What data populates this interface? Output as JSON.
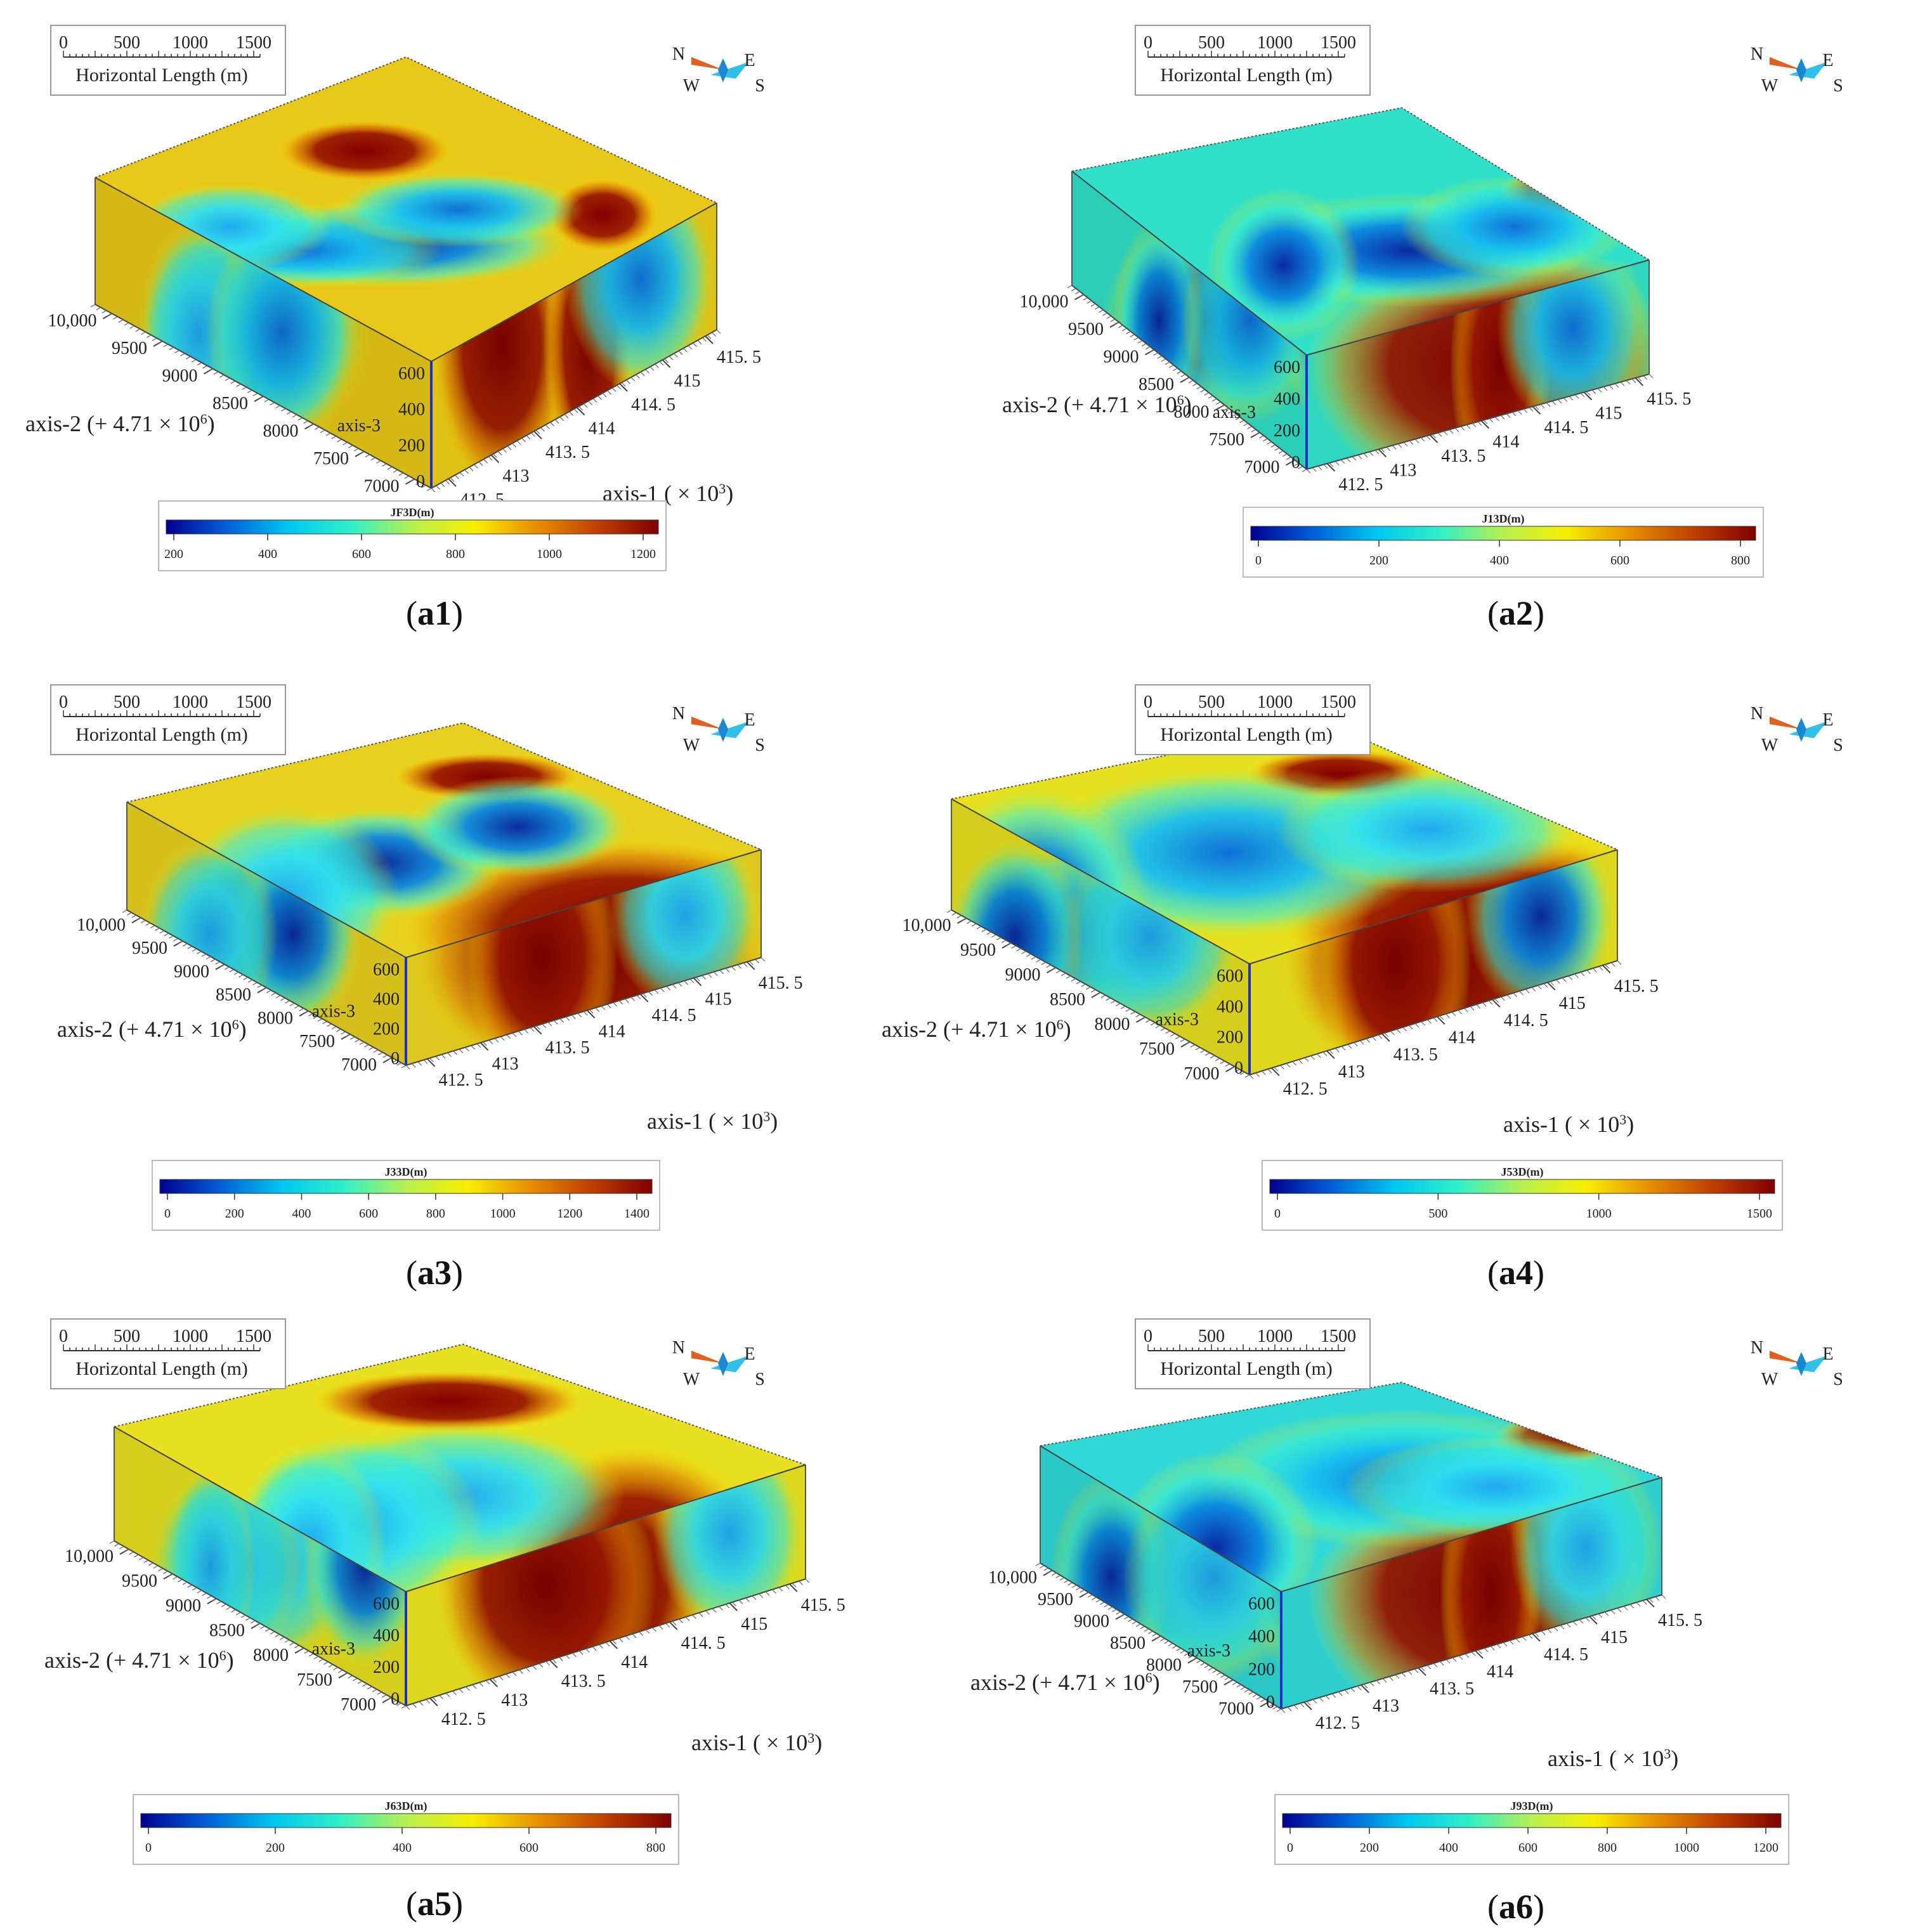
{
  "scale_bar": {
    "ticks": [
      "0",
      "500",
      "1000",
      "1500"
    ],
    "label": "Horizontal Length (m)"
  },
  "compass": {
    "n": "N",
    "e": "E",
    "s": "S",
    "w": "W"
  },
  "axis2_ticks": [
    "10,000",
    "9500",
    "9000",
    "8500",
    "8000",
    "7500",
    "7000"
  ],
  "axis1_ticks": [
    "412. 5",
    "413",
    "413. 5",
    "414",
    "414. 5",
    "415",
    "415. 5"
  ],
  "axis3_ticks": [
    "600",
    "400",
    "200",
    "0"
  ],
  "axis3_label": "axis-3",
  "axis2_label": {
    "prefix": "axis-2 (+ 4.71 × 10",
    "exp": "6",
    "suffix": ")"
  },
  "axis1_label": {
    "prefix": "axis-1 ( × 10",
    "exp": "3",
    "suffix": ")"
  },
  "colormap": [
    "#00008f",
    "#0060d8",
    "#00c8f0",
    "#30f0c8",
    "#b8f050",
    "#f8f000",
    "#e89000",
    "#c04000",
    "#7f0000"
  ],
  "panels": [
    {
      "id": "a1",
      "caption_open": "(",
      "caption_bold": "a1",
      "caption_close": ")",
      "colorbar": {
        "title": "JF3D(m)",
        "ticks": [
          "200",
          "400",
          "600",
          "800",
          "1000",
          "1200"
        ]
      }
    },
    {
      "id": "a2",
      "caption_open": "(",
      "caption_bold": "a2",
      "caption_close": ")",
      "colorbar": {
        "title": "J13D(m)",
        "ticks": [
          "0",
          "200",
          "400",
          "600",
          "800"
        ]
      }
    },
    {
      "id": "a3",
      "caption_open": "(",
      "caption_bold": "a3",
      "caption_close": ")",
      "colorbar": {
        "title": "J33D(m)",
        "ticks": [
          "0",
          "200",
          "400",
          "600",
          "800",
          "1000",
          "1200",
          "1400"
        ]
      }
    },
    {
      "id": "a4",
      "caption_open": "(",
      "caption_bold": "a4",
      "caption_close": ")",
      "colorbar": {
        "title": "J53D(m)",
        "ticks": [
          "0",
          "500",
          "1000",
          "1500"
        ]
      }
    },
    {
      "id": "a5",
      "caption_open": "(",
      "caption_bold": "a5",
      "caption_close": ")",
      "colorbar": {
        "title": "J63D(m)",
        "ticks": [
          "0",
          "200",
          "400",
          "600",
          "800"
        ]
      }
    },
    {
      "id": "a6",
      "caption_open": "(",
      "caption_bold": "a6",
      "caption_close": ")",
      "colorbar": {
        "title": "J93D(m)",
        "ticks": [
          "0",
          "200",
          "400",
          "600",
          "800",
          "1000",
          "1200"
        ]
      }
    }
  ]
}
